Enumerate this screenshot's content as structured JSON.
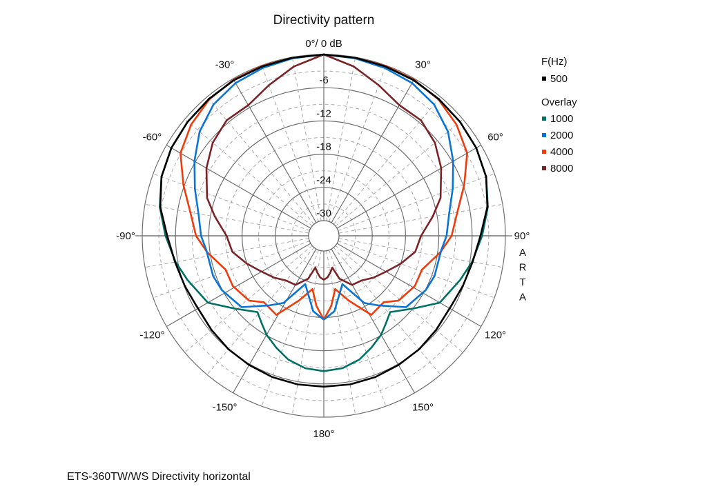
{
  "chart_data": {
    "type": "polar-line",
    "title": "Directivity pattern",
    "top_label": "0°/ 0 dB",
    "radial_unit": "dB",
    "radial_range": [
      -30,
      0
    ],
    "radial_ticks": [
      "-6",
      "-12",
      "-18",
      "-24",
      "-30"
    ],
    "angle_ticks": [
      {
        "angle": -150,
        "label": "-150°"
      },
      {
        "angle": -120,
        "label": "-120°"
      },
      {
        "angle": -90,
        "label": "-90°"
      },
      {
        "angle": -60,
        "label": "-60°"
      },
      {
        "angle": -30,
        "label": "-30°"
      },
      {
        "angle": 30,
        "label": "30°"
      },
      {
        "angle": 60,
        "label": "60°"
      },
      {
        "angle": 90,
        "label": "90°"
      },
      {
        "angle": 120,
        "label": "120°"
      },
      {
        "angle": 150,
        "label": "150°"
      },
      {
        "angle": 180,
        "label": "180°"
      }
    ],
    "grid": true,
    "legend_position": "right",
    "legend": {
      "title": "F(Hz)",
      "overlay_title": "Overlay"
    },
    "series": [
      {
        "name": "500",
        "color": "#000000",
        "overlay": false,
        "points": [
          [
            -180,
            -5.5
          ],
          [
            -170,
            -5.5
          ],
          [
            -160,
            -5.6
          ],
          [
            -150,
            -5.8
          ],
          [
            -140,
            -6
          ],
          [
            -130,
            -6.3
          ],
          [
            -118,
            -6.5
          ],
          [
            -110,
            -6.1
          ],
          [
            -105,
            -5.9
          ],
          [
            -100,
            -5.5
          ],
          [
            -90,
            -4.5
          ],
          [
            -80,
            -2.8
          ],
          [
            -70,
            -1.6
          ],
          [
            -60,
            -1
          ],
          [
            -50,
            -0.7
          ],
          [
            -40,
            -0.5
          ],
          [
            -30,
            -0.3
          ],
          [
            -20,
            -0.2
          ],
          [
            -10,
            -0.1
          ],
          [
            0,
            0
          ],
          [
            10,
            -0.1
          ],
          [
            20,
            -0.2
          ],
          [
            30,
            -0.3
          ],
          [
            40,
            -0.5
          ],
          [
            50,
            -0.7
          ],
          [
            60,
            -1
          ],
          [
            70,
            -1.6
          ],
          [
            80,
            -2.8
          ],
          [
            90,
            -4.5
          ],
          [
            100,
            -5.5
          ],
          [
            105,
            -5.9
          ],
          [
            110,
            -6.1
          ],
          [
            118,
            -6.5
          ],
          [
            130,
            -6.3
          ],
          [
            140,
            -6
          ],
          [
            150,
            -5.8
          ],
          [
            160,
            -5.6
          ],
          [
            170,
            -5.5
          ],
          [
            180,
            -5.5
          ]
        ]
      },
      {
        "name": "1000",
        "color": "#007067",
        "overlay": true,
        "points": [
          [
            -180,
            -8.3
          ],
          [
            -172,
            -8.6
          ],
          [
            -164,
            -9.5
          ],
          [
            -157,
            -10.8
          ],
          [
            -150,
            -12.1
          ],
          [
            -145,
            -13.3
          ],
          [
            -139,
            -14.5
          ],
          [
            -129,
            -11.9
          ],
          [
            -120,
            -8.6
          ],
          [
            -108,
            -6.9
          ],
          [
            -100,
            -5.6
          ],
          [
            -90,
            -4.2
          ],
          [
            -80,
            -2.7
          ],
          [
            -70,
            -1.6
          ],
          [
            -60,
            -1
          ],
          [
            -50,
            -0.7
          ],
          [
            -40,
            -0.5
          ],
          [
            -30,
            -0.3
          ],
          [
            -20,
            -0.2
          ],
          [
            -10,
            -0.1
          ],
          [
            0,
            0
          ],
          [
            10,
            -0.1
          ],
          [
            20,
            -0.2
          ],
          [
            30,
            -0.3
          ],
          [
            40,
            -0.5
          ],
          [
            50,
            -0.7
          ],
          [
            60,
            -1
          ],
          [
            70,
            -1.6
          ],
          [
            80,
            -2.7
          ],
          [
            90,
            -4.2
          ],
          [
            100,
            -5.6
          ],
          [
            108,
            -6.9
          ],
          [
            120,
            -8.6
          ],
          [
            129,
            -11.9
          ],
          [
            139,
            -14.5
          ],
          [
            145,
            -13.3
          ],
          [
            150,
            -12.1
          ],
          [
            157,
            -10.8
          ],
          [
            164,
            -9.5
          ],
          [
            172,
            -8.6
          ],
          [
            180,
            -8.3
          ]
        ]
      },
      {
        "name": "2000",
        "color": "#0a74d4",
        "overlay": true,
        "points": [
          [
            -180,
            -17.6
          ],
          [
            -172,
            -19
          ],
          [
            -159,
            -23.4
          ],
          [
            -149,
            -18.6
          ],
          [
            -142,
            -16.8
          ],
          [
            -131,
            -13.1
          ],
          [
            -118,
            -11.9
          ],
          [
            -110,
            -11.5
          ],
          [
            -97,
            -11.4
          ],
          [
            -90,
            -10.6
          ],
          [
            -80,
            -9.8
          ],
          [
            -70,
            -8
          ],
          [
            -60,
            -5.8
          ],
          [
            -50,
            -3.5
          ],
          [
            -40,
            -1.8
          ],
          [
            -30,
            -0.9
          ],
          [
            -20,
            -0.5
          ],
          [
            -10,
            -0.2
          ],
          [
            0,
            0
          ],
          [
            10,
            -0.2
          ],
          [
            20,
            -0.5
          ],
          [
            30,
            -0.9
          ],
          [
            40,
            -1.8
          ],
          [
            50,
            -3.5
          ],
          [
            60,
            -5.8
          ],
          [
            70,
            -8
          ],
          [
            80,
            -9.8
          ],
          [
            90,
            -10.6
          ],
          [
            97,
            -11.4
          ],
          [
            110,
            -11.5
          ],
          [
            118,
            -11.9
          ],
          [
            131,
            -13.1
          ],
          [
            142,
            -16.8
          ],
          [
            149,
            -18.6
          ],
          [
            159,
            -23.4
          ],
          [
            172,
            -19
          ],
          [
            180,
            -17.6
          ]
        ]
      },
      {
        "name": "4000",
        "color": "#f03c0a",
        "overlay": true,
        "points": [
          [
            -180,
            -17.6
          ],
          [
            -174,
            -20
          ],
          [
            -168,
            -22.9
          ],
          [
            -159,
            -20.2
          ],
          [
            -149,
            -16.1
          ],
          [
            -138,
            -16.6
          ],
          [
            -131,
            -14.9
          ],
          [
            -119,
            -14
          ],
          [
            -109,
            -14
          ],
          [
            -98,
            -11.5
          ],
          [
            -90,
            -9.7
          ],
          [
            -80,
            -8.3
          ],
          [
            -70,
            -5.8
          ],
          [
            -60,
            -2.9
          ],
          [
            -50,
            -1.5
          ],
          [
            -40,
            -0.6
          ],
          [
            -30,
            -0.2
          ],
          [
            -20,
            -0.1
          ],
          [
            -10,
            -0.1
          ],
          [
            0,
            0
          ],
          [
            10,
            -0.1
          ],
          [
            20,
            -0.1
          ],
          [
            30,
            -0.2
          ],
          [
            40,
            -0.6
          ],
          [
            50,
            -1.5
          ],
          [
            60,
            -2.9
          ],
          [
            70,
            -5.8
          ],
          [
            80,
            -8.3
          ],
          [
            90,
            -9.7
          ],
          [
            98,
            -11.5
          ],
          [
            109,
            -14
          ],
          [
            119,
            -14
          ],
          [
            131,
            -14.9
          ],
          [
            138,
            -16.6
          ],
          [
            149,
            -16.1
          ],
          [
            159,
            -20.2
          ],
          [
            168,
            -22.9
          ],
          [
            174,
            -20
          ],
          [
            180,
            -17.6
          ]
        ]
      },
      {
        "name": "8000",
        "color": "#7b2226",
        "overlay": true,
        "points": [
          [
            -180,
            -24.8
          ],
          [
            -175,
            -25.2
          ],
          [
            -170,
            -26
          ],
          [
            -165,
            -26.8
          ],
          [
            -160,
            -24.5
          ],
          [
            -150,
            -22.5
          ],
          [
            -140,
            -22.2
          ],
          [
            -130,
            -21
          ],
          [
            -120,
            -19.8
          ],
          [
            -110,
            -18
          ],
          [
            -100,
            -16
          ],
          [
            -90,
            -15.2
          ],
          [
            -80,
            -12.8
          ],
          [
            -72,
            -10.6
          ],
          [
            -60,
            -8.3
          ],
          [
            -50,
            -6.6
          ],
          [
            -40,
            -5.5
          ],
          [
            -30,
            -5.5
          ],
          [
            -20,
            -3.8
          ],
          [
            -10,
            -1.7
          ],
          [
            0,
            0
          ],
          [
            10,
            -1.7
          ],
          [
            20,
            -3.8
          ],
          [
            30,
            -5.5
          ],
          [
            40,
            -5.5
          ],
          [
            50,
            -6.6
          ],
          [
            60,
            -8.3
          ],
          [
            72,
            -10.6
          ],
          [
            80,
            -12.8
          ],
          [
            90,
            -15.2
          ],
          [
            100,
            -16
          ],
          [
            110,
            -18
          ],
          [
            120,
            -19.8
          ],
          [
            130,
            -21
          ],
          [
            140,
            -22.2
          ],
          [
            150,
            -22.5
          ],
          [
            160,
            -24.5
          ],
          [
            165,
            -26.8
          ],
          [
            170,
            -26
          ],
          [
            175,
            -25.2
          ],
          [
            180,
            -24.8
          ]
        ]
      }
    ]
  },
  "watermark": "ARTA",
  "footer": "ETS-360TW/WS  Directivity horizontal"
}
